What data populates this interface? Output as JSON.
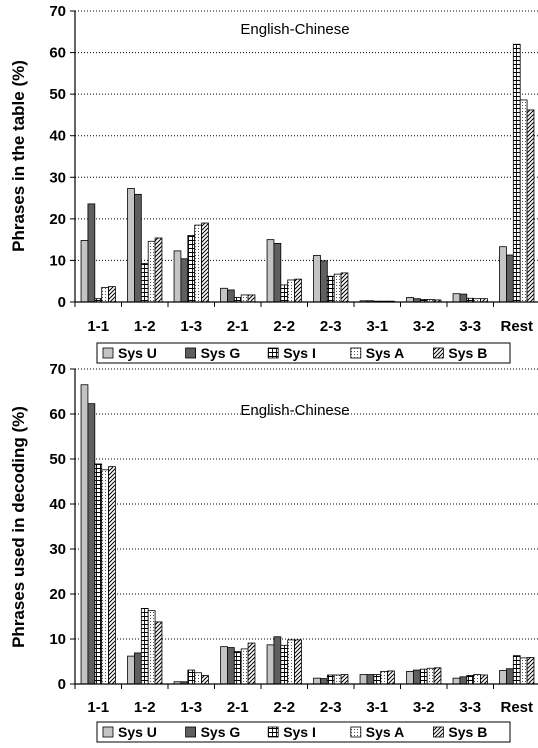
{
  "chart_data": [
    {
      "type": "bar",
      "title": "English-Chinese",
      "xlabel": "",
      "ylabel": "Phrases in the table (%)",
      "ylim": [
        0,
        70
      ],
      "yticks": [
        0,
        10,
        20,
        30,
        40,
        50,
        60,
        70
      ],
      "grid": "horizontal dotted",
      "legend": "bottom",
      "categories": [
        "1-1",
        "1-2",
        "1-3",
        "2-1",
        "2-2",
        "2-3",
        "3-1",
        "3-2",
        "3-3",
        "Rest"
      ],
      "series": [
        {
          "name": "Sys U",
          "values": [
            14.8,
            27.3,
            12.3,
            3.3,
            15.0,
            11.2,
            0.3,
            1.1,
            2.0,
            13.3
          ]
        },
        {
          "name": "Sys G",
          "values": [
            23.6,
            25.9,
            10.4,
            2.9,
            14.1,
            9.9,
            0.3,
            0.8,
            1.9,
            11.3
          ]
        },
        {
          "name": "Sys I",
          "values": [
            0.8,
            9.3,
            16.0,
            1.1,
            4.1,
            6.2,
            0.2,
            0.6,
            0.9,
            62.0
          ]
        },
        {
          "name": "Sys A",
          "values": [
            3.5,
            14.6,
            18.5,
            1.7,
            5.3,
            6.7,
            0.2,
            0.6,
            0.8,
            48.6
          ]
        },
        {
          "name": "Sys B",
          "values": [
            3.7,
            15.4,
            19.0,
            1.7,
            5.5,
            7.0,
            0.2,
            0.5,
            0.8,
            46.2
          ]
        }
      ]
    },
    {
      "type": "bar",
      "title": "English-Chinese",
      "xlabel": "",
      "ylabel": "Phrases used in decoding (%)",
      "ylim": [
        0,
        70
      ],
      "yticks": [
        0,
        10,
        20,
        30,
        40,
        50,
        60,
        70
      ],
      "grid": "horizontal dotted",
      "legend": "bottom",
      "categories": [
        "1-1",
        "1-2",
        "1-3",
        "2-1",
        "2-2",
        "2-3",
        "3-1",
        "3-2",
        "3-3",
        "Rest"
      ],
      "series": [
        {
          "name": "Sys U",
          "values": [
            66.5,
            6.2,
            0.5,
            8.3,
            8.7,
            1.3,
            2.1,
            2.8,
            1.3,
            3.0
          ]
        },
        {
          "name": "Sys G",
          "values": [
            62.3,
            6.9,
            0.5,
            8.1,
            10.5,
            1.2,
            2.1,
            3.1,
            1.6,
            3.4
          ]
        },
        {
          "name": "Sys I",
          "values": [
            48.9,
            16.8,
            3.1,
            7.2,
            8.6,
            2.0,
            2.1,
            3.3,
            1.9,
            6.3
          ]
        },
        {
          "name": "Sys A",
          "values": [
            47.6,
            16.3,
            2.5,
            7.8,
            9.8,
            2.0,
            2.8,
            3.5,
            2.1,
            5.8
          ]
        },
        {
          "name": "Sys B",
          "values": [
            48.3,
            13.8,
            1.9,
            9.1,
            9.8,
            2.1,
            2.9,
            3.6,
            2.0,
            5.9
          ]
        }
      ]
    }
  ],
  "series_styles": [
    {
      "name": "Sys U",
      "fill": "#c4c4c4",
      "pattern": "solid"
    },
    {
      "name": "Sys G",
      "fill": "#5f5f5f",
      "pattern": "solid"
    },
    {
      "name": "Sys I",
      "fill": "#ffffff",
      "pattern": "grid"
    },
    {
      "name": "Sys A",
      "fill": "#ffffff",
      "pattern": "dots"
    },
    {
      "name": "Sys B",
      "fill": "#ffffff",
      "pattern": "diagonal"
    }
  ]
}
